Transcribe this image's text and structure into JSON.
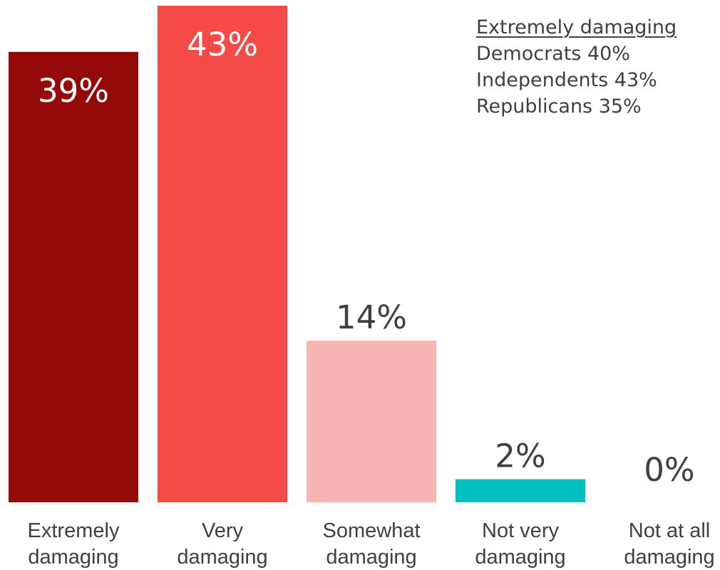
{
  "chart_data": {
    "type": "bar",
    "categories": [
      [
        "Extremely",
        "damaging"
      ],
      [
        "Very",
        "damaging"
      ],
      [
        "Somewhat",
        "damaging"
      ],
      [
        "Not very",
        "damaging"
      ],
      [
        "Not at all",
        "damaging"
      ]
    ],
    "values": [
      39,
      43,
      14,
      2,
      0
    ],
    "data_labels": [
      "39%",
      "43%",
      "14%",
      "2%",
      "0%"
    ],
    "colors": [
      "#930A09",
      "#F54B47",
      "#F9B5B3",
      "#00C1BF",
      "#FFFFFF"
    ],
    "label_colors": [
      "#FFFFFF",
      "#FFFFFF",
      "#404040",
      "#404040",
      "#404040"
    ],
    "label_inside": [
      true,
      true,
      false,
      false,
      false
    ],
    "ylim": [
      0,
      43
    ],
    "grid": false,
    "legend": "none"
  },
  "annotation": {
    "heading": "Extremely damaging",
    "lines": [
      "Democrats 40%",
      "Independents 43%",
      "Republicans 35%"
    ]
  }
}
